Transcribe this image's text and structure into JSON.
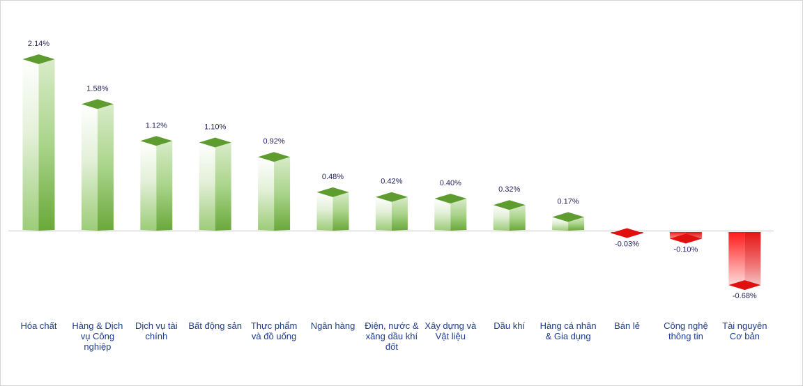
{
  "chart_data": {
    "type": "bar",
    "categories": [
      "Hóa chất",
      "Hàng & Dịch vụ Công nghiệp",
      "Dịch vụ tài chính",
      "Bất động sản",
      "Thực phẩm và đồ uống",
      "Ngân hàng",
      "Điện, nước & xăng dầu khí đốt",
      "Xây dựng và Vật liệu",
      "Dầu khí",
      "Hàng cá nhân & Gia dụng",
      "Bán lẻ",
      "Công nghệ thông tin",
      "Tài nguyên Cơ bản"
    ],
    "category_lines": [
      [
        "Hóa chất"
      ],
      [
        "Hàng & Dịch",
        "vụ Công",
        "nghiệp"
      ],
      [
        "Dịch vụ tài",
        "chính"
      ],
      [
        "Bất động sản"
      ],
      [
        "Thực phẩm",
        "và đồ uống"
      ],
      [
        "Ngân hàng"
      ],
      [
        "Điện, nước &",
        "xăng dầu khí",
        "đốt"
      ],
      [
        "Xây dựng và",
        "Vật liệu"
      ],
      [
        "Dầu khí"
      ],
      [
        "Hàng cá nhân",
        "& Gia dụng"
      ],
      [
        "Bán lẻ"
      ],
      [
        "Công nghệ",
        "thông tin"
      ],
      [
        "Tài nguyên",
        "Cơ bản"
      ]
    ],
    "values": [
      2.14,
      1.58,
      1.12,
      1.1,
      0.92,
      0.48,
      0.42,
      0.4,
      0.32,
      0.17,
      -0.03,
      -0.1,
      -0.68
    ],
    "value_labels": [
      "2.14%",
      "1.58%",
      "1.12%",
      "1.10%",
      "0.92%",
      "0.48%",
      "0.42%",
      "0.40%",
      "0.32%",
      "0.17%",
      "-0.03%",
      "-0.10%",
      "-0.68%"
    ],
    "title": "",
    "xlabel": "",
    "ylabel": "",
    "ylim": [
      -0.8,
      2.3
    ],
    "grid": false,
    "legend": "none",
    "colors": {
      "positive": "#6aa83a",
      "positive_light": "#ffffff",
      "positive_top": "#5e9c30",
      "negative": "#ff1a1a",
      "negative_light": "#ffffff",
      "negative_top": "#e01010",
      "axis": "#c8c8c8",
      "value_text": "#1f1f5a",
      "category_text": "#1f3b8c"
    }
  }
}
